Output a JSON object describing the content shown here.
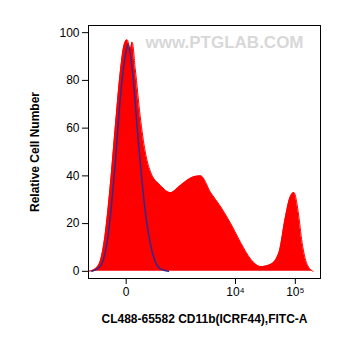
{
  "chart_data": {
    "type": "area",
    "annotations": [
      "www.PTGLAB.COM"
    ],
    "x_label": "CL488-65582 CD11b(ICRF44),FITC-A",
    "y_label": "Relative Cell Number",
    "log": "x",
    "xlim": [
      -500,
      262144
    ],
    "xticks": [
      0,
      {
        "value": 10000,
        "label": "10⁴"
      },
      {
        "value": 100000,
        "label": "10⁵"
      }
    ],
    "ylim": [
      -3,
      103
    ],
    "yticks": [
      0,
      20,
      40,
      60,
      80,
      100
    ],
    "grid": false,
    "series": [
      {
        "type": "area",
        "color": "#ff0000",
        "x": [
          -500,
          -355,
          -266,
          -193,
          -132,
          -81,
          -40,
          -12,
          6,
          26,
          40,
          64,
          110,
          167,
          234,
          419,
          687,
          1085,
          1660,
          2520,
          3770,
          5630,
          8310,
          12250,
          18150,
          26700,
          39300,
          53600,
          67600,
          81700,
          95000,
          111500,
          129600,
          156700,
          197500
        ],
        "values": [
          0,
          1,
          4,
          15,
          35,
          60,
          83,
          95,
          97,
          93,
          96,
          85,
          65,
          50,
          42,
          36,
          33,
          36,
          39,
          40,
          33,
          27,
          20,
          12,
          5,
          2,
          3,
          8,
          22,
          31,
          33,
          25,
          12,
          3,
          0
        ]
      },
      {
        "type": "line",
        "color": "#2e2a8f",
        "x": [
          -420,
          -266,
          -154,
          -81,
          -40,
          -6,
          12,
          40,
          91,
          167,
          266,
          419,
          625
        ],
        "values": [
          0,
          2,
          15,
          45,
          72,
          90,
          95,
          85,
          55,
          25,
          8,
          1,
          0
        ]
      }
    ]
  }
}
